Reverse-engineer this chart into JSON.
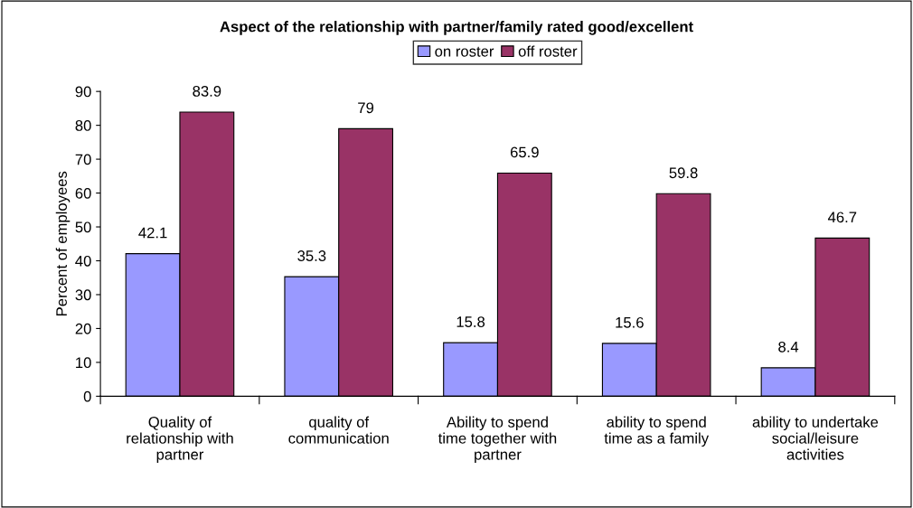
{
  "chart_data": {
    "type": "bar",
    "title": "Aspect of the relationship with partner/family rated good/excellent",
    "ylabel": "Percent of employees",
    "categories": [
      "Quality of\nrelationship with\npartner",
      "quality of\ncommunication",
      "Ability to spend\ntime together with\npartner",
      "ability to spend\ntime as a family",
      "ability to undertake\nsocial/leisure\nactivities"
    ],
    "series": [
      {
        "name": "on roster",
        "color": "#9999ff",
        "values": [
          42.1,
          35.3,
          15.8,
          15.6,
          8.4
        ]
      },
      {
        "name": "off roster",
        "color": "#993366",
        "values": [
          83.9,
          79,
          65.9,
          59.8,
          46.7
        ]
      }
    ],
    "ylim": [
      0,
      90
    ],
    "yticks": [
      0,
      10,
      20,
      30,
      40,
      50,
      60,
      70,
      80,
      90
    ],
    "data_labels": true,
    "grid": false,
    "legend": "top"
  }
}
